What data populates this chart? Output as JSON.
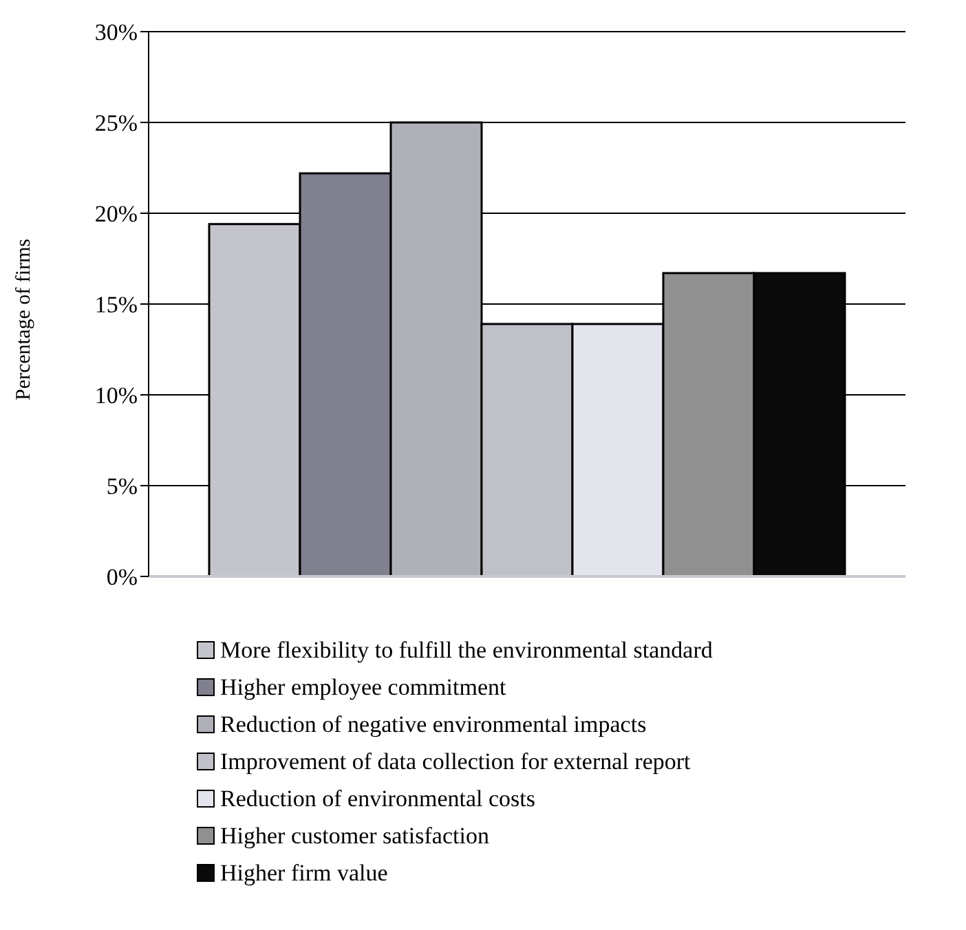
{
  "chart_data": {
    "type": "bar",
    "ylabel": "Percentage of firms",
    "categories": [
      null
    ],
    "series": [
      {
        "name": "More flexibility to fulfill the environmental standard",
        "color": "#c4c4cc",
        "values": [
          19.4
        ]
      },
      {
        "name": "Higher employee commitment",
        "color": "#80808f",
        "values": [
          22.2
        ]
      },
      {
        "name": "Reduction of negative environmental impacts",
        "color": "#b0b0b8",
        "values": [
          25
        ]
      },
      {
        "name": "Improvement of data collection for external report",
        "color": "#c0c0c8",
        "values": [
          13.9
        ]
      },
      {
        "name": "Reduction of environmental costs",
        "color": "#e4e4ec",
        "values": [
          13.9
        ]
      },
      {
        "name": "Higher customer satisfaction",
        "color": "#909090",
        "values": [
          16.7
        ]
      },
      {
        "name": "Higher firm value",
        "color": "#0a0a0a",
        "values": [
          16.7
        ]
      }
    ],
    "ylim": [
      0,
      30
    ],
    "yticks": [
      {
        "value": 0,
        "label": "0%"
      },
      {
        "value": 5,
        "label": "5%"
      },
      {
        "value": 10,
        "label": "10%"
      },
      {
        "value": 15,
        "label": "15%"
      },
      {
        "value": 20,
        "label": "20%"
      },
      {
        "value": 25,
        "label": "25%"
      },
      {
        "value": 30,
        "label": "30%"
      }
    ],
    "grid": "y",
    "legend": "bottom"
  }
}
